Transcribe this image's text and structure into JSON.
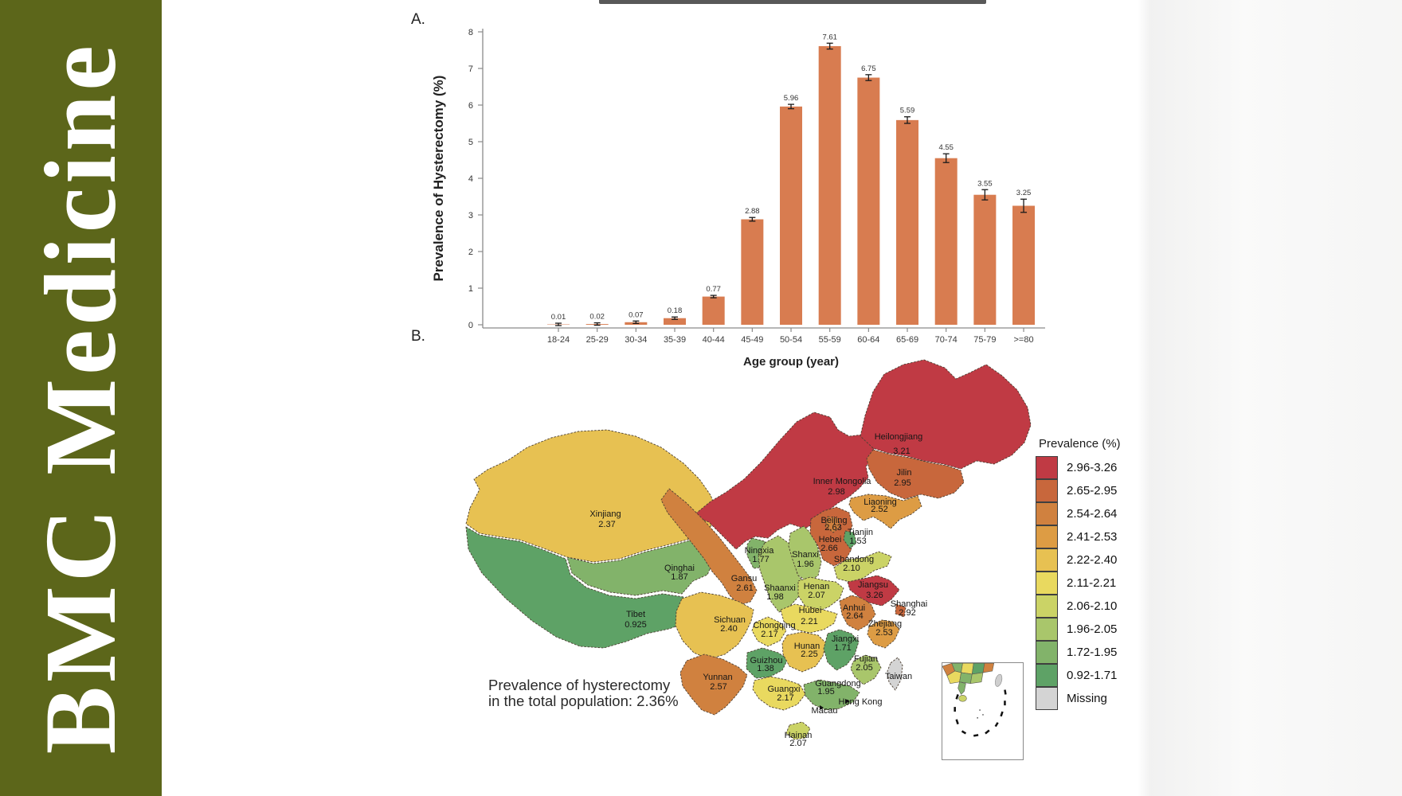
{
  "banner": {
    "title": "BMC Medicine",
    "bg_color": "#5c661a",
    "text_color": "#ffffff"
  },
  "panel_a": {
    "label": "A."
  },
  "panel_b": {
    "label": "B.",
    "note_line1": "Prevalence of hysterectomy",
    "note_line2": "in the total population: 2.36%",
    "legend_title": "Prevalence (%)",
    "extra_labels": {
      "taiwan": "Taiwan",
      "hong_kong": "Hong Kong",
      "macau": "Macau"
    }
  },
  "chart_data": [
    {
      "type": "bar",
      "title": "",
      "xlabel": "Age group (year)",
      "ylabel": "Prevalence of Hysterectomy (%)",
      "ylim": [
        0,
        8
      ],
      "grid": false,
      "bar_color": "#d87c50",
      "categories": [
        "18-24",
        "25-29",
        "30-34",
        "35-39",
        "40-44",
        "45-49",
        "50-54",
        "55-59",
        "60-64",
        "65-69",
        "70-74",
        "75-79",
        ">=80"
      ],
      "values": [
        0.01,
        0.02,
        0.07,
        0.18,
        0.77,
        2.88,
        5.96,
        7.61,
        6.75,
        5.59,
        4.55,
        3.55,
        3.25
      ],
      "errors": [
        0.01,
        0.01,
        0.015,
        0.025,
        0.03,
        0.05,
        0.06,
        0.08,
        0.08,
        0.09,
        0.12,
        0.14,
        0.18
      ],
      "value_labels": [
        "0.01",
        "0.02",
        "0.07",
        "0.18",
        "0.77",
        "2.88",
        "5.96",
        "7.61",
        "6.75",
        "5.59",
        "4.55",
        "3.55",
        "3.25"
      ]
    },
    {
      "type": "choropleth",
      "region": "China provinces",
      "legend_title": "Prevalence (%)",
      "note": "Prevalence of hysterectomy in the total population: 2.36%",
      "bins": [
        {
          "range": "2.96-3.26",
          "color": "#c03a44"
        },
        {
          "range": "2.65-2.95",
          "color": "#c8673c"
        },
        {
          "range": "2.54-2.64",
          "color": "#d0813f"
        },
        {
          "range": "2.41-2.53",
          "color": "#dd9c44"
        },
        {
          "range": "2.22-2.40",
          "color": "#e7c152"
        },
        {
          "range": "2.11-2.21",
          "color": "#e9d95f"
        },
        {
          "range": "2.06-2.10",
          "color": "#cbd366"
        },
        {
          "range": "1.96-2.05",
          "color": "#a9c66b"
        },
        {
          "range": "1.72-1.95",
          "color": "#82b36a"
        },
        {
          "range": "0.92-1.71",
          "color": "#5ea266"
        },
        {
          "range": "Missing",
          "color": "#d4d4d4"
        }
      ],
      "provinces": [
        {
          "id": "heilongjiang",
          "name": "Heilongjiang",
          "value": "3.21",
          "color": "#c03a44"
        },
        {
          "id": "jilin",
          "name": "Jilin",
          "value": "2.95",
          "color": "#c8673c"
        },
        {
          "id": "inner_mongolia",
          "name": "Inner Mongolia",
          "value": "2.98",
          "color": "#c03a44"
        },
        {
          "id": "liaoning",
          "name": "Liaoning",
          "value": "2.52",
          "color": "#dd9c44"
        },
        {
          "id": "beijing",
          "name": "Beijing",
          "value": "2.63",
          "color": "#d0813f"
        },
        {
          "id": "tianjin",
          "name": "Tianjin",
          "value": "1.53",
          "color": "#5ea266"
        },
        {
          "id": "hebei",
          "name": "Hebei",
          "value": "2.66",
          "color": "#c8673c"
        },
        {
          "id": "shanxi",
          "name": "Shanxi",
          "value": "1.96",
          "color": "#a9c66b"
        },
        {
          "id": "shandong",
          "name": "Shandong",
          "value": "2.10",
          "color": "#cbd366"
        },
        {
          "id": "henan",
          "name": "Henan",
          "value": "2.07",
          "color": "#cbd366"
        },
        {
          "id": "jiangsu",
          "name": "Jiangsu",
          "value": "3.26",
          "color": "#c03a44"
        },
        {
          "id": "shanghai",
          "name": "Shanghai",
          "value": "2.92",
          "color": "#c8673c"
        },
        {
          "id": "anhui",
          "name": "Anhui",
          "value": "2.64",
          "color": "#d0813f"
        },
        {
          "id": "zhejiang",
          "name": "Zhejiang",
          "value": "2.53",
          "color": "#dd9c44"
        },
        {
          "id": "hubei",
          "name": "Hubei",
          "value": "2.21",
          "color": "#e9d95f"
        },
        {
          "id": "chongqing",
          "name": "Chongqing",
          "value": "2.17",
          "color": "#e9d95f"
        },
        {
          "id": "sichuan",
          "name": "Sichuan",
          "value": "2.40",
          "color": "#e7c152"
        },
        {
          "id": "hunan",
          "name": "Hunan",
          "value": "2.25",
          "color": "#e7c152"
        },
        {
          "id": "jiangxi",
          "name": "Jiangxi",
          "value": "1.71",
          "color": "#5ea266"
        },
        {
          "id": "guizhou",
          "name": "Guizhou",
          "value": "1.38",
          "color": "#5ea266"
        },
        {
          "id": "fujian",
          "name": "Fujian",
          "value": "2.05",
          "color": "#a9c66b"
        },
        {
          "id": "guangdong",
          "name": "Guangdong",
          "value": "1.95",
          "color": "#82b36a"
        },
        {
          "id": "guangxi",
          "name": "Guangxi",
          "value": "2.17",
          "color": "#e9d95f"
        },
        {
          "id": "hainan",
          "name": "Hainan",
          "value": "2.07",
          "color": "#cbd366"
        },
        {
          "id": "yunnan",
          "name": "Yunnan",
          "value": "2.57",
          "color": "#d0813f"
        },
        {
          "id": "xinjiang",
          "name": "Xinjiang",
          "value": "2.37",
          "color": "#e7c152"
        },
        {
          "id": "tibet",
          "name": "Tibet",
          "value": "0.925",
          "color": "#5ea266"
        },
        {
          "id": "qinghai",
          "name": "Qinghai",
          "value": "1.87",
          "color": "#82b36a"
        },
        {
          "id": "ningxia",
          "name": "Ningxia",
          "value": "1.77",
          "color": "#82b36a"
        },
        {
          "id": "gansu",
          "name": "Gansu",
          "value": "2.61",
          "color": "#d0813f"
        },
        {
          "id": "shaanxi",
          "name": "Shaanxi",
          "value": "1.98",
          "color": "#a9c66b"
        },
        {
          "id": "taiwan",
          "name": "",
          "value": "",
          "color": "#d4d4d4"
        }
      ]
    }
  ]
}
